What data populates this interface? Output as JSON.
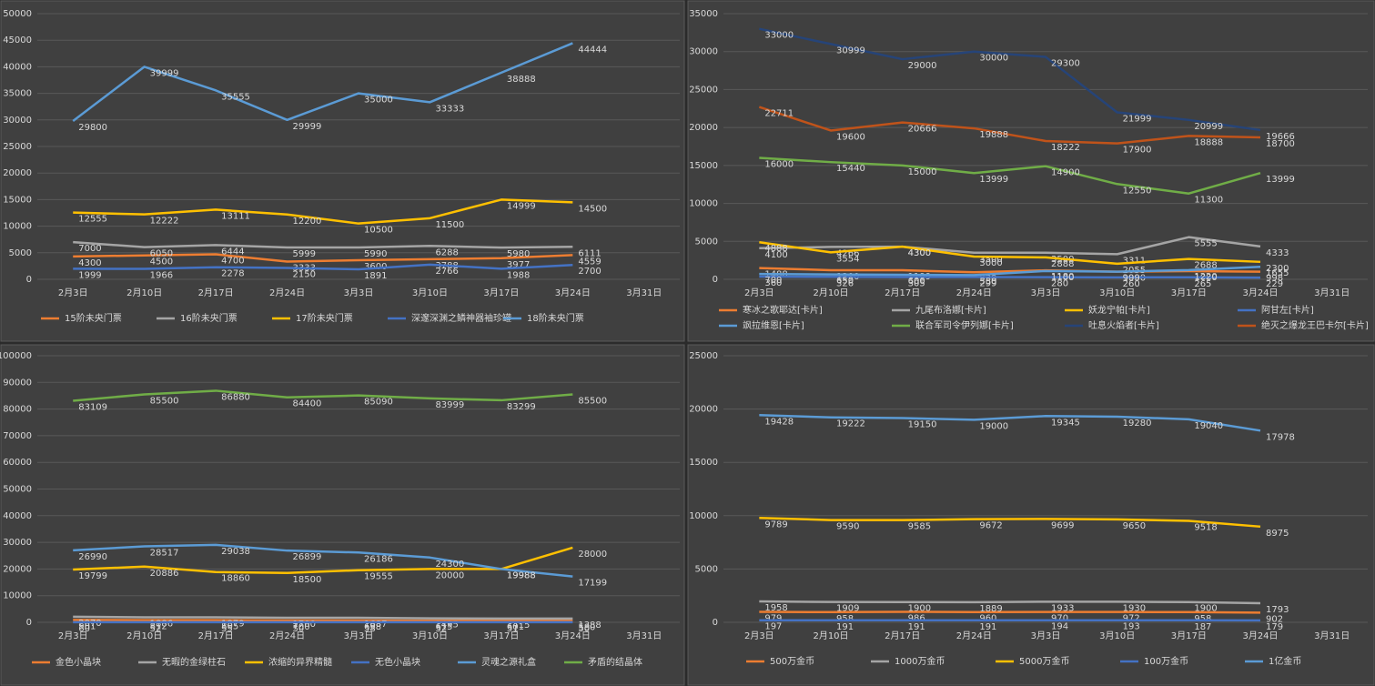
{
  "chart_data": [
    {
      "type": "line",
      "legend": "bottom",
      "categories": [
        "2月3日",
        "2月10日",
        "2月17日",
        "2月24日",
        "3月3日",
        "3月10日",
        "3月17日",
        "3月24日",
        "3月31日"
      ],
      "ylim": [
        0,
        50000
      ],
      "yticks": [
        0,
        5000,
        10000,
        15000,
        20000,
        25000,
        30000,
        35000,
        40000,
        45000,
        50000
      ],
      "series": [
        {
          "name": "15阶未央门票",
          "color": "#ed7d31",
          "values": [
            4300,
            4500,
            4700,
            3333,
            3600,
            3788,
            3977,
            4559,
            null
          ]
        },
        {
          "name": "16阶未央门票",
          "color": "#a5a5a5",
          "values": [
            7000,
            6050,
            6444,
            5999,
            5990,
            6288,
            5980,
            6111,
            null
          ]
        },
        {
          "name": "17阶未央门票",
          "color": "#ffc000",
          "values": [
            12555,
            12222,
            13111,
            12200,
            10500,
            11500,
            14999,
            14500,
            null
          ]
        },
        {
          "name": "深邃深渊之鳞神器袖珍罐",
          "color": "#4472c4",
          "values": [
            1999,
            1966,
            2278,
            2150,
            1891,
            2766,
            1988,
            2700,
            null
          ]
        },
        {
          "name": "18阶未央门票",
          "color": "#5b9bd5",
          "values": [
            29800,
            39999,
            35555,
            29999,
            35000,
            33333,
            38888,
            44444,
            null
          ]
        }
      ]
    },
    {
      "type": "line",
      "legend": "bottom",
      "categories": [
        "2月3日",
        "2月10日",
        "2月17日",
        "2月24日",
        "3月3日",
        "3月10日",
        "3月17日",
        "3月24日",
        "3月31日"
      ],
      "ylim": [
        0,
        35000
      ],
      "yticks": [
        0,
        5000,
        10000,
        15000,
        20000,
        25000,
        30000,
        35000
      ],
      "series": [
        {
          "name": "寒冰之歌耶达[卡片]",
          "color": "#ed7d31",
          "values": [
            1488,
            1200,
            1199,
            930,
            1180,
            1000,
            1080,
            998,
            null
          ]
        },
        {
          "name": "九尾布洛娜[卡片]",
          "color": "#a5a5a5",
          "values": [
            4100,
            4266,
            4300,
            3500,
            3500,
            3311,
            5555,
            4333,
            null
          ]
        },
        {
          "name": "妖龙宁帕[卡片]",
          "color": "#ffc000",
          "values": [
            4888,
            3554,
            4300,
            3000,
            2888,
            2055,
            2688,
            2300,
            null
          ]
        },
        {
          "name": "阿甘左[卡片]",
          "color": "#4472c4",
          "values": [
            360,
            326,
            305,
            299,
            280,
            260,
            265,
            229,
            null
          ]
        },
        {
          "name": "飒拉维恩[卡片]",
          "color": "#5b9bd5",
          "values": [
            700,
            650,
            600,
            550,
            1100,
            999,
            1220,
            1655,
            null
          ]
        },
        {
          "name": "联合军司令伊列娜[卡片]",
          "color": "#70ad47",
          "values": [
            16000,
            15440,
            15000,
            13999,
            14900,
            12550,
            11300,
            13999,
            null
          ]
        },
        {
          "name": "吐息火焰者[卡片]",
          "color": "#264478",
          "values": [
            33000,
            30999,
            29000,
            30000,
            29300,
            21999,
            20999,
            19666,
            null
          ]
        },
        {
          "name": "绝灭之爆龙王巴卡尔[卡片]",
          "color": "#c0531a",
          "values": [
            22711,
            19600,
            20666,
            19888,
            18222,
            17900,
            18888,
            18700,
            null
          ]
        }
      ]
    },
    {
      "type": "line",
      "legend": "bottom",
      "categories": [
        "2月3日",
        "2月10日",
        "2月17日",
        "2月24日",
        "3月3日",
        "3月10日",
        "3月17日",
        "3月24日",
        "3月31日"
      ],
      "ylim": [
        0,
        100000
      ],
      "yticks": [
        0,
        10000,
        20000,
        30000,
        40000,
        50000,
        60000,
        70000,
        80000,
        90000,
        100000
      ],
      "series": [
        {
          "name": "金色小晶块",
          "color": "#ed7d31",
          "values": [
            901,
            812,
            805,
            700,
            698,
            615,
            601,
            580,
            null
          ]
        },
        {
          "name": "无暇的金绿柱石",
          "color": "#a5a5a5",
          "values": [
            2070,
            1886,
            1879,
            1700,
            1687,
            1495,
            1415,
            1388,
            null
          ]
        },
        {
          "name": "浓缩的异界精髓",
          "color": "#ffc000",
          "values": [
            19799,
            20886,
            18860,
            18500,
            19555,
            20000,
            19988,
            28000,
            null
          ]
        },
        {
          "name": "无色小晶块",
          "color": "#4472c4",
          "values": [
            60,
            52,
            55,
            50,
            58,
            52,
            51,
            50,
            null
          ]
        },
        {
          "name": "灵魂之源礼盒",
          "color": "#5b9bd5",
          "values": [
            26990,
            28517,
            29038,
            26899,
            26186,
            24300,
            19988,
            17199,
            null
          ]
        },
        {
          "name": "矛盾的结晶体",
          "color": "#70ad47",
          "values": [
            83109,
            85500,
            86880,
            84400,
            85090,
            83999,
            83299,
            85500,
            null
          ]
        }
      ]
    },
    {
      "type": "line",
      "legend": "bottom",
      "categories": [
        "2月3日",
        "2月10日",
        "2月17日",
        "2月24日",
        "3月3日",
        "3月10日",
        "3月17日",
        "3月24日",
        "3月31日"
      ],
      "ylim": [
        0,
        25000
      ],
      "yticks": [
        0,
        5000,
        10000,
        15000,
        20000,
        25000
      ],
      "series": [
        {
          "name": "500万金币",
          "color": "#ed7d31",
          "values": [
            979,
            958,
            986,
            960,
            970,
            972,
            958,
            902,
            null
          ]
        },
        {
          "name": "1000万金币",
          "color": "#a5a5a5",
          "values": [
            1958,
            1909,
            1900,
            1889,
            1933,
            1930,
            1900,
            1793,
            null
          ]
        },
        {
          "name": "5000万金币",
          "color": "#ffc000",
          "values": [
            9789,
            9590,
            9585,
            9672,
            9699,
            9650,
            9518,
            8975,
            null
          ]
        },
        {
          "name": "100万金币",
          "color": "#4472c4",
          "values": [
            197,
            191,
            191,
            191,
            194,
            193,
            187,
            179,
            null
          ]
        },
        {
          "name": "1亿金币",
          "color": "#5b9bd5",
          "values": [
            19428,
            19222,
            19150,
            19000,
            19345,
            19280,
            19040,
            17978,
            null
          ]
        }
      ]
    }
  ]
}
